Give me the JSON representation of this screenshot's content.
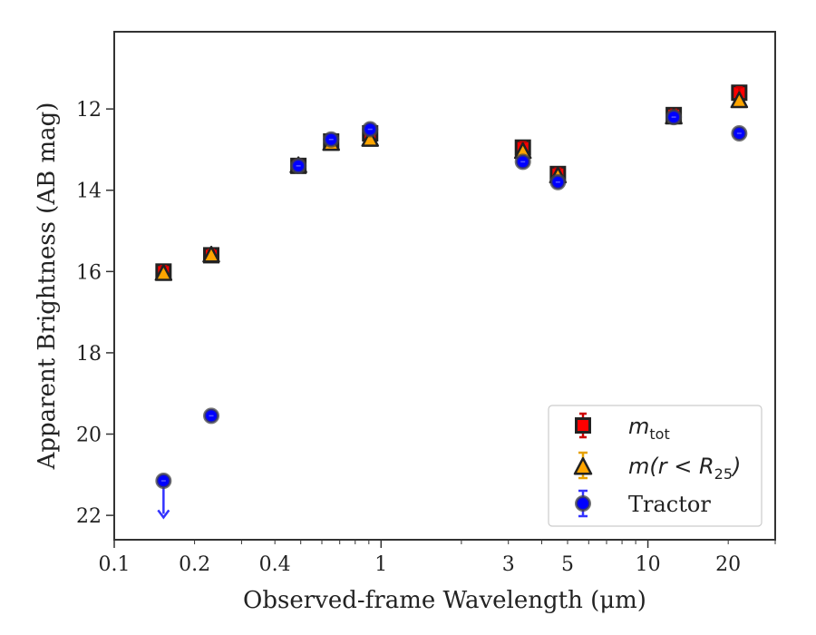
{
  "chart_data": {
    "type": "scatter",
    "xlabel": "Observed-frame Wavelength (μm)",
    "ylabel": "Apparent Brightness (AB mag)",
    "x_scale": "log",
    "xlim": [
      0.1,
      30
    ],
    "ylim": [
      22.6,
      10.1
    ],
    "y_inverted": true,
    "x_ticks": [
      0.1,
      0.2,
      0.4,
      1,
      3,
      5,
      10,
      20
    ],
    "x_tick_labels": [
      "0.1",
      "0.2",
      "0.4",
      "1",
      "3",
      "5",
      "10",
      "20"
    ],
    "y_ticks": [
      12,
      14,
      16,
      18,
      20,
      22
    ],
    "y_tick_labels": [
      "12",
      "14",
      "16",
      "18",
      "20",
      "22"
    ],
    "grid": false,
    "legend_position": "lower-right",
    "series": [
      {
        "name": "m_tot",
        "legend_label": {
          "base": "m",
          "sub": "tot"
        },
        "marker": "square",
        "fill": "#ff0000",
        "errcolor": "#cc0000",
        "points": [
          {
            "x": 0.153,
            "y": 16.0
          },
          {
            "x": 0.231,
            "y": 15.6
          },
          {
            "x": 0.49,
            "y": 13.4
          },
          {
            "x": 0.65,
            "y": 12.8
          },
          {
            "x": 0.91,
            "y": 12.6
          },
          {
            "x": 3.4,
            "y": 12.95
          },
          {
            "x": 4.6,
            "y": 13.6
          },
          {
            "x": 12.5,
            "y": 12.15
          },
          {
            "x": 22.0,
            "y": 11.6
          }
        ]
      },
      {
        "name": "m(r < R25)",
        "legend_label": {
          "base": "m(r < R",
          "sub": "25",
          "tail": ")"
        },
        "marker": "triangle",
        "fill": "#ffa500",
        "errcolor": "#e6a100",
        "points": [
          {
            "x": 0.153,
            "y": 16.05
          },
          {
            "x": 0.231,
            "y": 15.6
          },
          {
            "x": 0.49,
            "y": 13.4
          },
          {
            "x": 0.65,
            "y": 12.85
          },
          {
            "x": 0.91,
            "y": 12.75
          },
          {
            "x": 3.4,
            "y": 13.05
          },
          {
            "x": 4.6,
            "y": 13.65
          },
          {
            "x": 12.5,
            "y": 12.2
          },
          {
            "x": 22.0,
            "y": 11.8
          }
        ]
      },
      {
        "name": "Tractor",
        "legend_label": {
          "base": "Tractor"
        },
        "marker": "circle",
        "fill": "#0000ff",
        "errcolor": "#3333ff",
        "points": [
          {
            "x": 0.153,
            "y": 21.15,
            "upper_limit": true
          },
          {
            "x": 0.231,
            "y": 19.55
          },
          {
            "x": 0.49,
            "y": 13.4
          },
          {
            "x": 0.65,
            "y": 12.75
          },
          {
            "x": 0.91,
            "y": 12.5
          },
          {
            "x": 3.4,
            "y": 13.3
          },
          {
            "x": 4.6,
            "y": 13.8
          },
          {
            "x": 12.5,
            "y": 12.2
          },
          {
            "x": 22.0,
            "y": 12.6
          }
        ]
      }
    ]
  }
}
